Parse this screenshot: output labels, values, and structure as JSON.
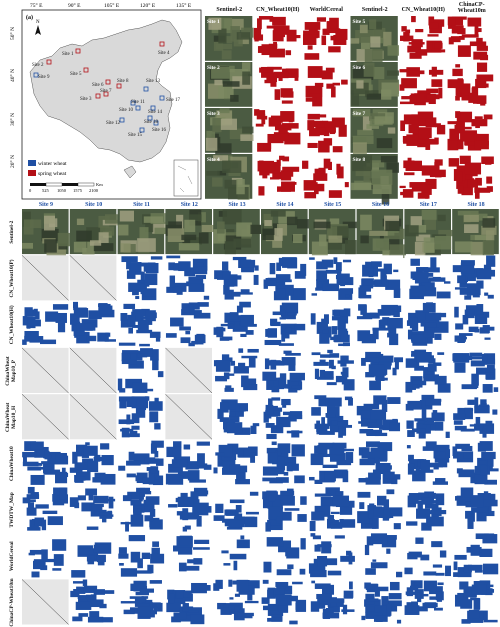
{
  "panel_a": {
    "label": "(a)",
    "lon_ticks": [
      "75° E",
      "90° E",
      "105° E",
      "120° E",
      "135° E"
    ],
    "lat_ticks": [
      "50° N",
      "40° N",
      "30° N",
      "20° N"
    ],
    "north": "N",
    "legend": [
      {
        "label": "winter wheat",
        "color": "#1f4fa3"
      },
      {
        "label": "spring wheat",
        "color": "#b30f16"
      }
    ],
    "scale": {
      "ticks": [
        "0",
        "525",
        "1050",
        "1575",
        "2100"
      ],
      "unit": "Km"
    },
    "sites": [
      {
        "label": "Site 1"
      },
      {
        "label": "Site 2"
      },
      {
        "label": "Site 3"
      },
      {
        "label": "Site 4"
      },
      {
        "label": "Site 5"
      },
      {
        "label": "Site 6"
      },
      {
        "label": "Site 7"
      },
      {
        "label": "Site 8"
      },
      {
        "label": "Site 9"
      },
      {
        "label": "Site 10"
      },
      {
        "label": "Site 11"
      },
      {
        "label": "Site 12"
      },
      {
        "label": "Site 13"
      },
      {
        "label": "Site 14"
      },
      {
        "label": "Site 15"
      },
      {
        "label": "Site 16"
      },
      {
        "label": "Site 17"
      },
      {
        "label": "Site 18"
      }
    ]
  },
  "top_grid": {
    "headers": [
      "Sentinel-2",
      "CN_Wheat10(H)",
      "WorldCereal",
      "Sentinel-2",
      "CN_Wheat10(H)",
      "ChinaCP-Wheat10m"
    ],
    "left_sites": [
      "Site 1",
      "Site 2",
      "Site 3",
      "Site 4"
    ],
    "right_sites": [
      "Site 5",
      "Site 6",
      "Site 7",
      "Site 8"
    ]
  },
  "bottom_grid": {
    "columns": [
      "Site 9",
      "Site 10",
      "Site 11",
      "Site 12",
      "Site 13",
      "Site 14",
      "Site 15",
      "Site 16",
      "Site 17",
      "Site 18"
    ],
    "rows": [
      "Sentinel-2",
      "CN_Wheat10(P)",
      "CN_Wheat10(H)",
      "ChinaWheat Map10_P",
      "ChinaWheat Map10_H",
      "ChinaWheat10",
      "TWDTW_Map",
      "WorldCereal",
      "ChinaCP-Wheat10m"
    ]
  },
  "colors": {
    "winter": "#1f4fa3",
    "spring": "#b30f16",
    "land": "#d9d9d9",
    "na_fill": "#e6e6e6"
  }
}
